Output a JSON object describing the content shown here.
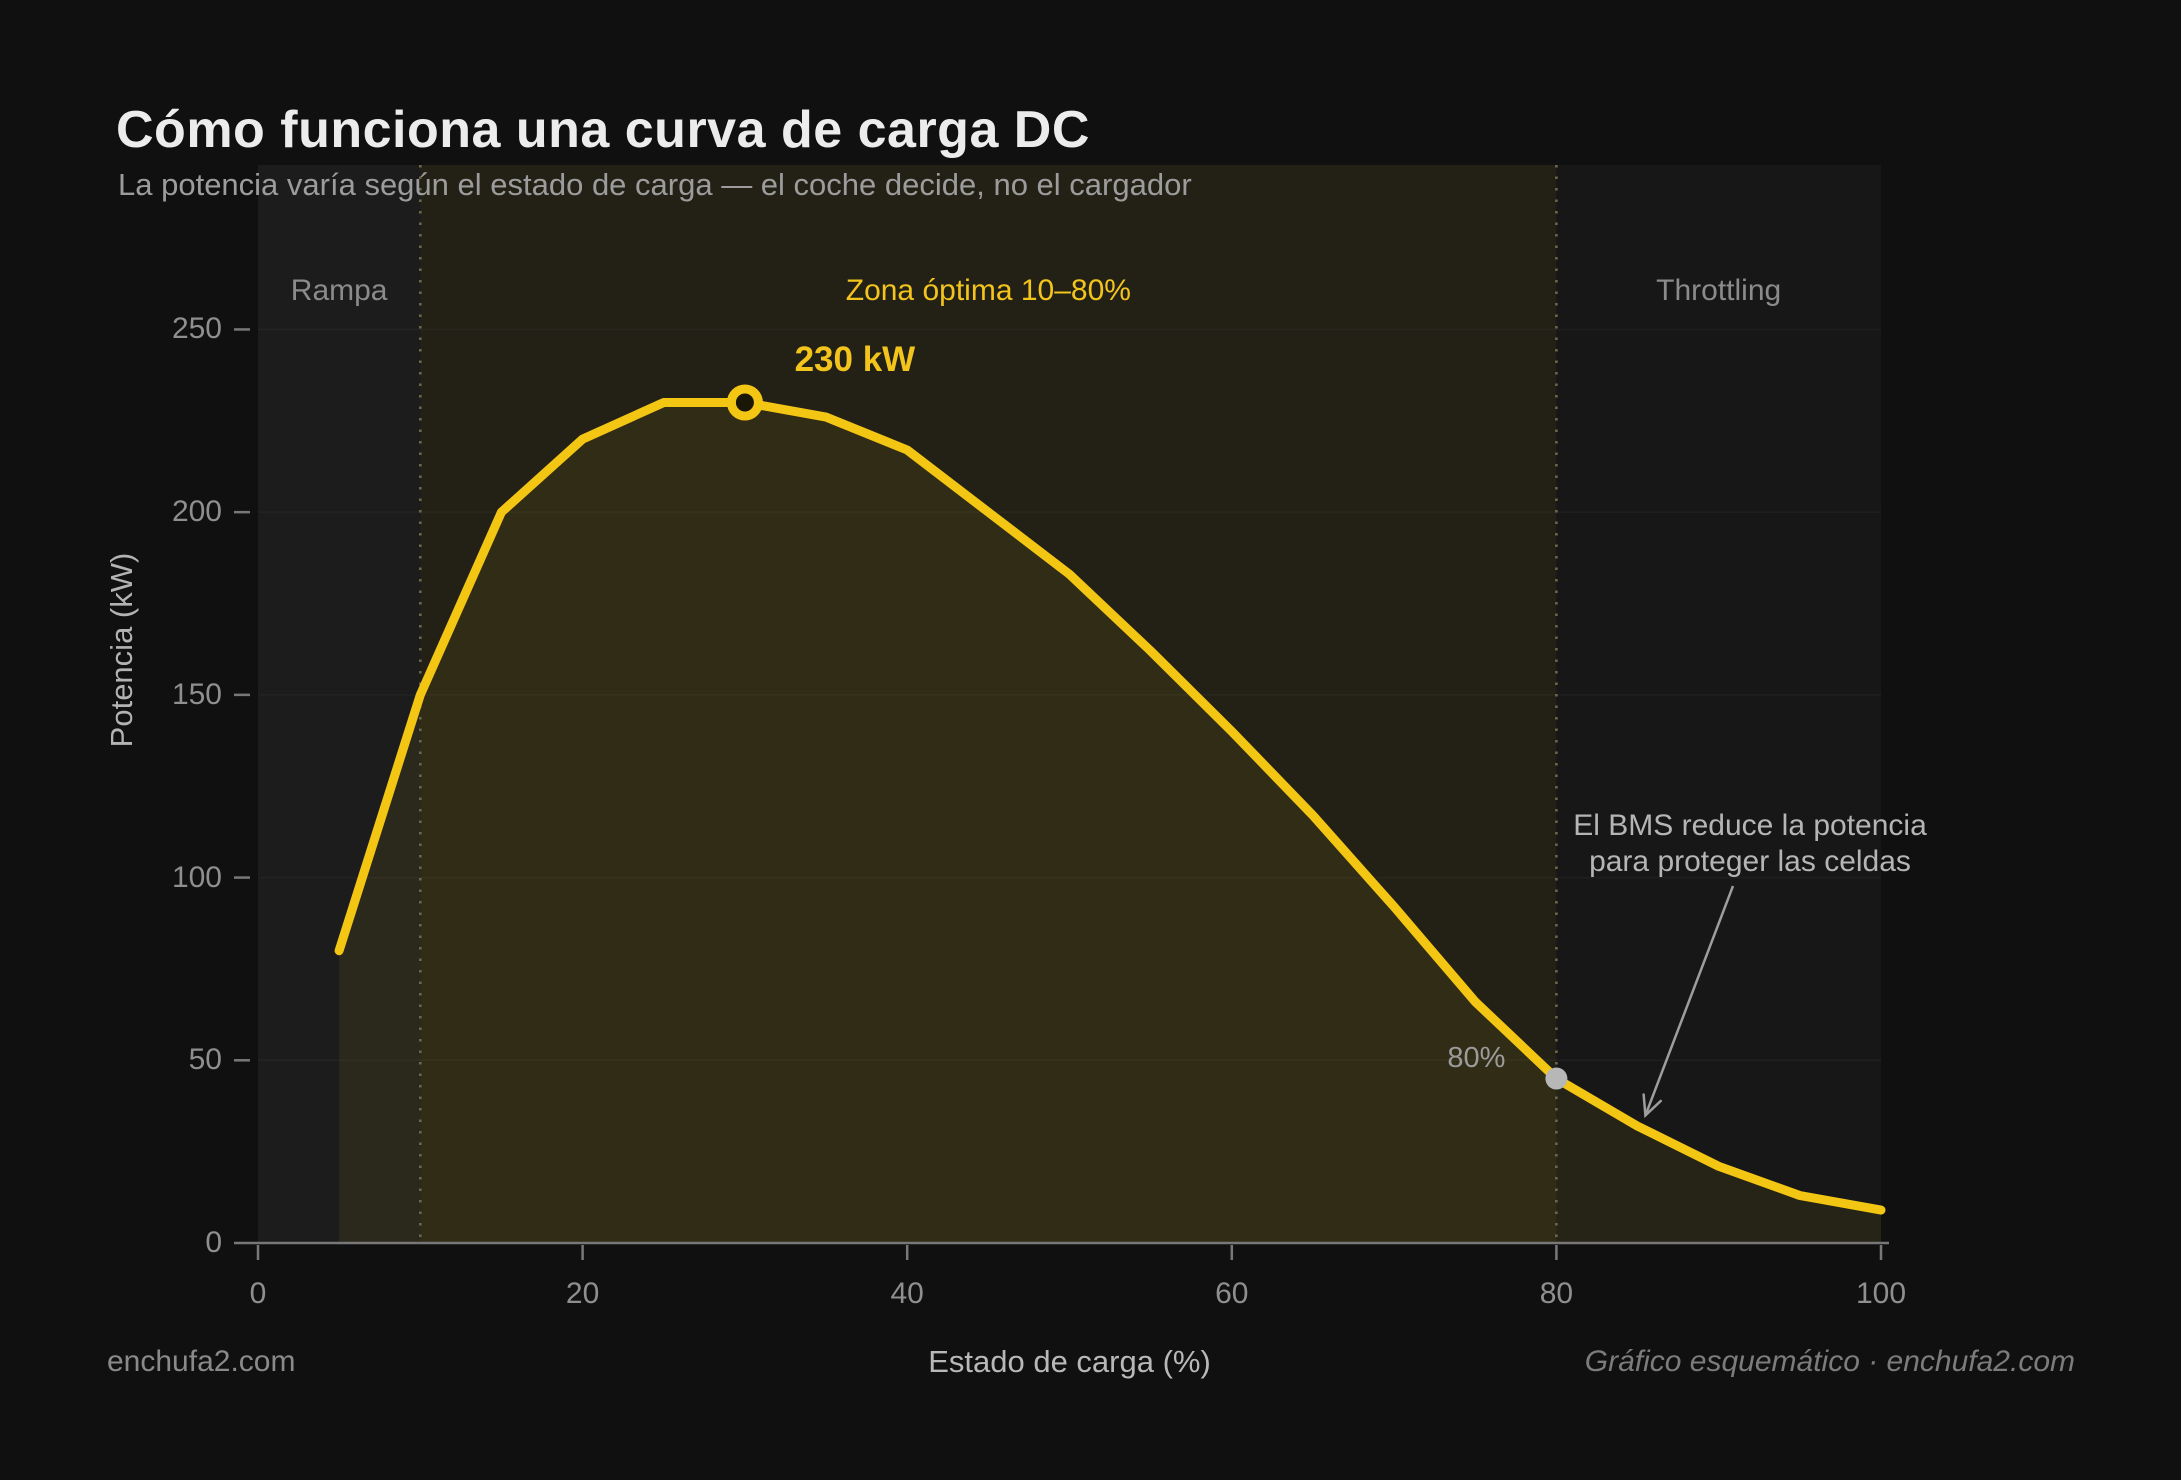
{
  "header": {
    "title": "Cómo funciona una curva de carga DC",
    "subtitle": "La potencia varía según el estado de carga — el coche decide, no el cargador"
  },
  "footer": {
    "left": "enchufa2.com",
    "right": "Gráfico esquemático · enchufa2.com"
  },
  "chart_data": {
    "type": "area",
    "xlabel": "Estado de carga (%)",
    "ylabel": "Potencia (kW)",
    "xlim": [
      0,
      100
    ],
    "ylim": [
      0,
      295
    ],
    "x_ticks": [
      0,
      20,
      40,
      60,
      80,
      100
    ],
    "y_ticks": [
      0,
      50,
      100,
      150,
      200,
      250
    ],
    "grid": "horizontal-faint",
    "colors": {
      "page_bg": "#101010",
      "plot_bg": "#171717",
      "curve": "#f4c614",
      "area_fill": "rgba(242,197,22,0.07)",
      "grid_line": "rgba(255,255,255,0.035)",
      "axis": "#787878",
      "boundary_dashed": "#6f6a4e",
      "peak_marker_core": "#1a1708",
      "soc80_marker": "#b7b7b7",
      "annotation_gray": "#b5b5b5"
    },
    "series": [
      {
        "name": "Potencia de carga DC",
        "x": [
          5,
          10,
          15,
          20,
          25,
          30,
          35,
          40,
          45,
          50,
          55,
          60,
          65,
          70,
          75,
          80,
          85,
          90,
          95,
          100
        ],
        "y": [
          80,
          150,
          200,
          220,
          230,
          230,
          226,
          217,
          200,
          183,
          162,
          140,
          117,
          92,
          66,
          45,
          32,
          21,
          13,
          9
        ]
      }
    ],
    "zones": [
      {
        "label": "Rampa",
        "from": 0,
        "to": 10,
        "label_color": "#8b8b8b",
        "fill": "rgba(255,255,255,0.025)"
      },
      {
        "label": "Zona óptima 10–80%",
        "from": 10,
        "to": 80,
        "label_color": "#f2c41c",
        "fill": "rgba(242,197,22,0.06)"
      },
      {
        "label": "Throttling",
        "from": 80,
        "to": 100,
        "label_color": "#8b8b8b",
        "fill": "rgba(255,255,255,0)"
      }
    ],
    "boundary_lines_x": [
      10,
      80
    ],
    "annotations": {
      "peak": {
        "x": 30,
        "y": 230,
        "label": "230 kW",
        "color": "#f2c41c"
      },
      "soc80": {
        "x": 80,
        "y": 45,
        "label": "80%",
        "color": "#9a9a9a"
      },
      "bms_note": {
        "lines": [
          "El BMS reduce la potencia",
          "para proteger las celdas"
        ],
        "color": "#b5b5b5",
        "arrow_to_x": 85.3,
        "arrow_to_y": 33
      }
    }
  }
}
